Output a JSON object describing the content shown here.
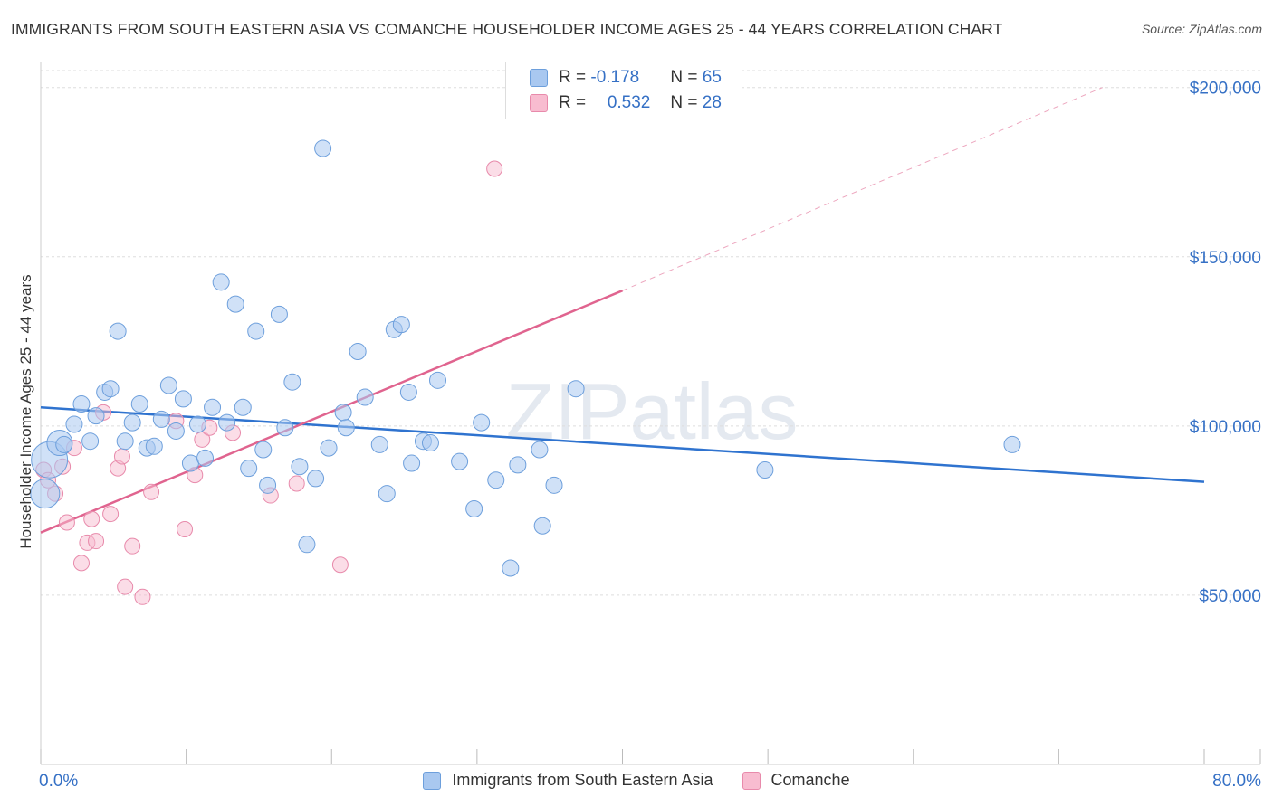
{
  "title": "IMMIGRANTS FROM SOUTH EASTERN ASIA VS COMANCHE HOUSEHOLDER INCOME AGES 25 - 44 YEARS CORRELATION CHART",
  "source": "Source: ZipAtlas.com",
  "watermark": "ZIPatlas",
  "legend": {
    "rows": [
      {
        "r_label": "R = ",
        "r_value": "-0.178",
        "n_label": "N = ",
        "n_value": "65"
      },
      {
        "r_label": "R = ",
        "r_value": "0.532",
        "n_label": "N = ",
        "n_value": "28"
      }
    ]
  },
  "bottom_legend": [
    "Immigrants from South Eastern Asia",
    "Comanche"
  ],
  "chart_data": {
    "type": "scatter",
    "xlabel": "",
    "ylabel": "Householder Income Ages 25 - 44 years",
    "xlim": [
      0,
      80
    ],
    "ylim": [
      0,
      205000
    ],
    "x_tick_labels": [
      "0.0%",
      "80.0%"
    ],
    "y_ticks": [
      50000,
      100000,
      150000,
      200000
    ],
    "y_tick_labels": [
      "$50,000",
      "$100,000",
      "$150,000",
      "$200,000"
    ],
    "colors": {
      "series1": "#a9c8f0",
      "series1_stroke": "#6d9fdc",
      "series1_line": "#2f73cf",
      "series2": "#f8bcd0",
      "series2_stroke": "#e88aab",
      "series2_line": "#e0648f",
      "tick_text": "#3570c5",
      "grid": "#dddddd"
    },
    "series": [
      {
        "name": "Immigrants from South Eastern Asia",
        "r": -0.178,
        "n": 65,
        "trend": {
          "x": [
            0,
            80
          ],
          "y": [
            105500,
            83500
          ]
        },
        "points": [
          {
            "x": 0.3,
            "y": 80000,
            "s": 16
          },
          {
            "x": 0.6,
            "y": 90000,
            "s": 20
          },
          {
            "x": 1.3,
            "y": 95000,
            "s": 14
          },
          {
            "x": 1.6,
            "y": 94500
          },
          {
            "x": 2.3,
            "y": 100500
          },
          {
            "x": 2.8,
            "y": 106500
          },
          {
            "x": 3.4,
            "y": 95500
          },
          {
            "x": 3.8,
            "y": 103000
          },
          {
            "x": 4.4,
            "y": 110000
          },
          {
            "x": 4.8,
            "y": 111000
          },
          {
            "x": 5.3,
            "y": 128000
          },
          {
            "x": 5.8,
            "y": 95500
          },
          {
            "x": 6.3,
            "y": 101000
          },
          {
            "x": 6.8,
            "y": 106500
          },
          {
            "x": 7.3,
            "y": 93500
          },
          {
            "x": 7.8,
            "y": 94000
          },
          {
            "x": 8.3,
            "y": 102000
          },
          {
            "x": 8.8,
            "y": 112000
          },
          {
            "x": 9.3,
            "y": 98500
          },
          {
            "x": 9.8,
            "y": 108000
          },
          {
            "x": 10.3,
            "y": 89000
          },
          {
            "x": 10.8,
            "y": 100500
          },
          {
            "x": 11.3,
            "y": 90500
          },
          {
            "x": 11.8,
            "y": 105500
          },
          {
            "x": 12.4,
            "y": 142500
          },
          {
            "x": 12.8,
            "y": 101000
          },
          {
            "x": 13.4,
            "y": 136000
          },
          {
            "x": 13.9,
            "y": 105500
          },
          {
            "x": 14.3,
            "y": 87500
          },
          {
            "x": 14.8,
            "y": 128000
          },
          {
            "x": 15.3,
            "y": 93000
          },
          {
            "x": 15.6,
            "y": 82500
          },
          {
            "x": 16.4,
            "y": 133000
          },
          {
            "x": 16.8,
            "y": 99500
          },
          {
            "x": 17.3,
            "y": 113000
          },
          {
            "x": 17.8,
            "y": 88000
          },
          {
            "x": 18.3,
            "y": 65000
          },
          {
            "x": 18.9,
            "y": 84500
          },
          {
            "x": 19.4,
            "y": 182000
          },
          {
            "x": 19.8,
            "y": 93500
          },
          {
            "x": 20.8,
            "y": 104000
          },
          {
            "x": 21.0,
            "y": 99500
          },
          {
            "x": 21.8,
            "y": 122000
          },
          {
            "x": 22.3,
            "y": 108500
          },
          {
            "x": 23.3,
            "y": 94500
          },
          {
            "x": 23.8,
            "y": 80000
          },
          {
            "x": 24.3,
            "y": 128500
          },
          {
            "x": 24.8,
            "y": 130000
          },
          {
            "x": 25.3,
            "y": 110000
          },
          {
            "x": 25.5,
            "y": 89000
          },
          {
            "x": 26.3,
            "y": 95500
          },
          {
            "x": 26.8,
            "y": 95000
          },
          {
            "x": 27.3,
            "y": 113500
          },
          {
            "x": 28.8,
            "y": 89500
          },
          {
            "x": 29.8,
            "y": 75500
          },
          {
            "x": 30.3,
            "y": 101000
          },
          {
            "x": 31.3,
            "y": 84000
          },
          {
            "x": 32.3,
            "y": 58000
          },
          {
            "x": 32.8,
            "y": 88500
          },
          {
            "x": 34.3,
            "y": 93000
          },
          {
            "x": 34.5,
            "y": 70500
          },
          {
            "x": 35.3,
            "y": 82500
          },
          {
            "x": 36.8,
            "y": 111000
          },
          {
            "x": 49.8,
            "y": 87000
          },
          {
            "x": 66.8,
            "y": 94500
          }
        ]
      },
      {
        "name": "Comanche",
        "r": 0.532,
        "n": 28,
        "trend": {
          "x": [
            0,
            40
          ],
          "y": [
            68500,
            140000
          ]
        },
        "trend_dashed": {
          "x": [
            40,
            73
          ],
          "y": [
            140000,
            200000
          ]
        },
        "points": [
          {
            "x": 0.2,
            "y": 87000
          },
          {
            "x": 0.5,
            "y": 84000
          },
          {
            "x": 1.0,
            "y": 80000
          },
          {
            "x": 1.5,
            "y": 88000
          },
          {
            "x": 1.8,
            "y": 71500
          },
          {
            "x": 2.3,
            "y": 93500
          },
          {
            "x": 2.8,
            "y": 59500
          },
          {
            "x": 3.2,
            "y": 65500
          },
          {
            "x": 3.5,
            "y": 72500
          },
          {
            "x": 3.8,
            "y": 66000
          },
          {
            "x": 4.3,
            "y": 104000
          },
          {
            "x": 4.8,
            "y": 74000
          },
          {
            "x": 5.3,
            "y": 87500
          },
          {
            "x": 5.6,
            "y": 91000
          },
          {
            "x": 5.8,
            "y": 52500
          },
          {
            "x": 6.3,
            "y": 64500
          },
          {
            "x": 7.0,
            "y": 49500
          },
          {
            "x": 7.6,
            "y": 80500
          },
          {
            "x": 9.3,
            "y": 101500
          },
          {
            "x": 9.9,
            "y": 69500
          },
          {
            "x": 10.6,
            "y": 85500
          },
          {
            "x": 11.1,
            "y": 96000
          },
          {
            "x": 11.6,
            "y": 99500
          },
          {
            "x": 13.2,
            "y": 98000
          },
          {
            "x": 15.8,
            "y": 79500
          },
          {
            "x": 17.6,
            "y": 83000
          },
          {
            "x": 20.6,
            "y": 59000
          },
          {
            "x": 31.2,
            "y": 176000
          }
        ]
      }
    ]
  }
}
